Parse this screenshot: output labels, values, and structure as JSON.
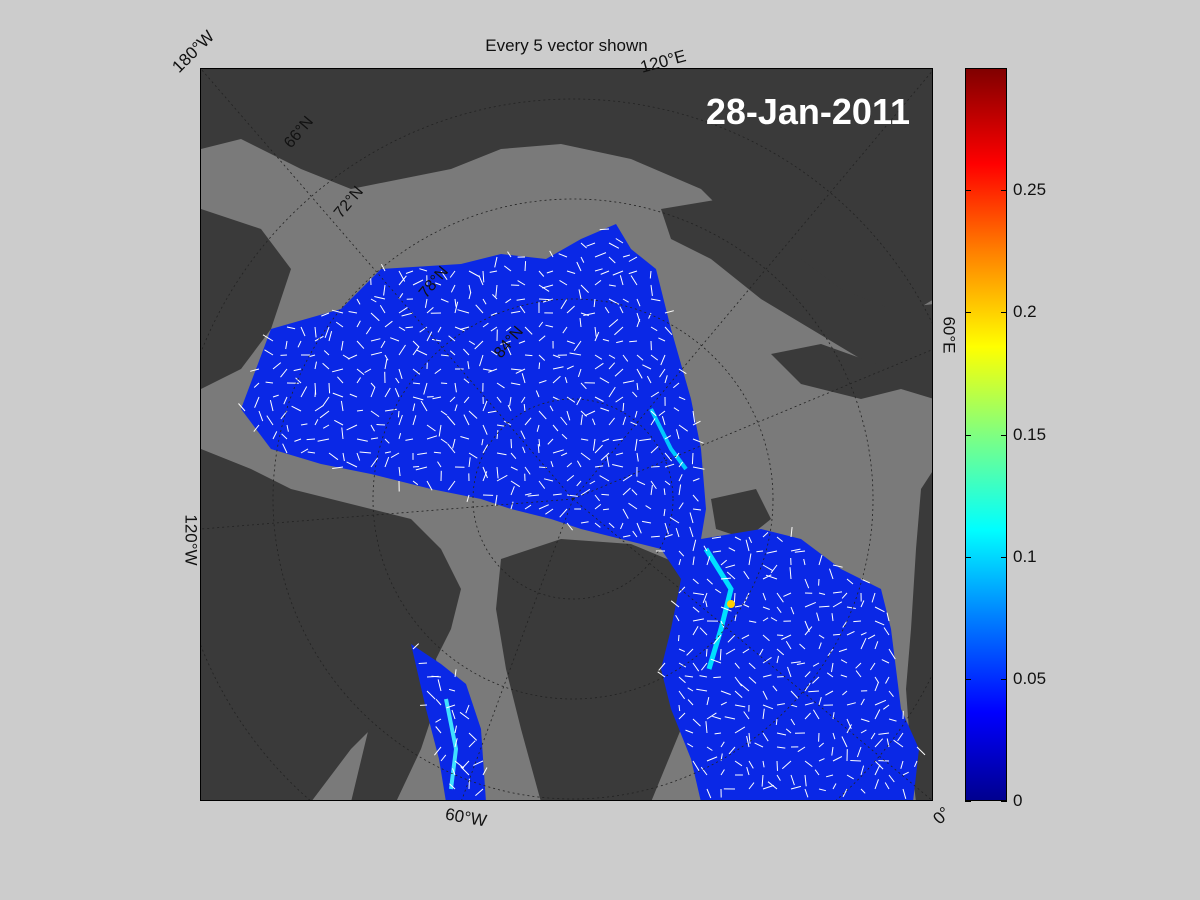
{
  "figure": {
    "title": "Every 5 vector shown",
    "date": "28-Jan-2011"
  },
  "map": {
    "projection": "polar stereographic (north)",
    "edge_labels": {
      "top_left": "180°W",
      "top": "120°E",
      "right": "60°E",
      "left": "120°W",
      "bottom": "60°W",
      "bottom_right": "0°"
    },
    "latitude_labels": [
      "66°N",
      "72°N",
      "78°N",
      "84°N"
    ],
    "colors": {
      "land": "#3a3a3a",
      "ocean": "#7a7a7a",
      "vectors": "#ffffff",
      "low_speed": "#0a28e6"
    }
  },
  "colorbar": {
    "min": 0,
    "max": 0.3,
    "colormap": "jet",
    "ticks": [
      "0",
      "0.05",
      "0.1",
      "0.15",
      "0.2",
      "0.25"
    ]
  }
}
